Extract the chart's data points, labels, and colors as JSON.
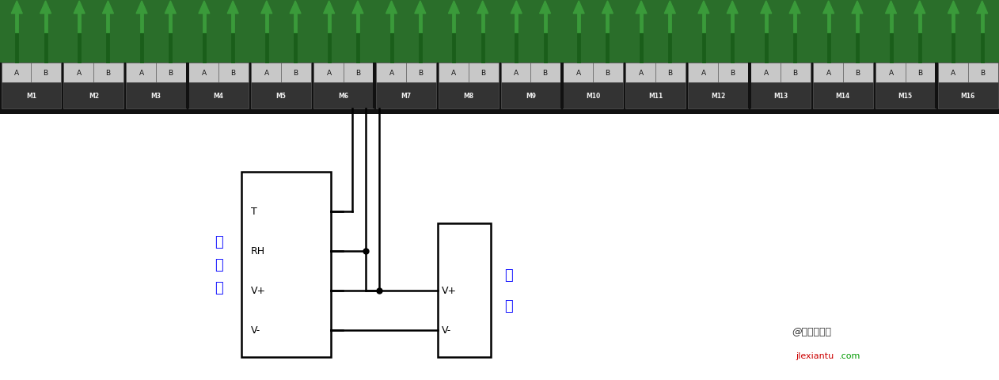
{
  "bg_color": "#ffffff",
  "labels_m": [
    "M1",
    "M2",
    "M3",
    "M4",
    "M5",
    "M6",
    "M7",
    "M8",
    "M9",
    "M10",
    "M11",
    "M12",
    "M13",
    "M14",
    "M15",
    "M16"
  ],
  "sensor_label": "传\n感\n器",
  "power_label": "电\n源",
  "terminal_labels": [
    "T",
    "RH",
    "V+",
    "V-"
  ],
  "power_terminal_labels": [
    "V+",
    "V-"
  ],
  "line_width": 1.8,
  "watermark1": "@弱电智能网",
  "watermark2": "jIexiantu",
  "watermark3": ".com"
}
